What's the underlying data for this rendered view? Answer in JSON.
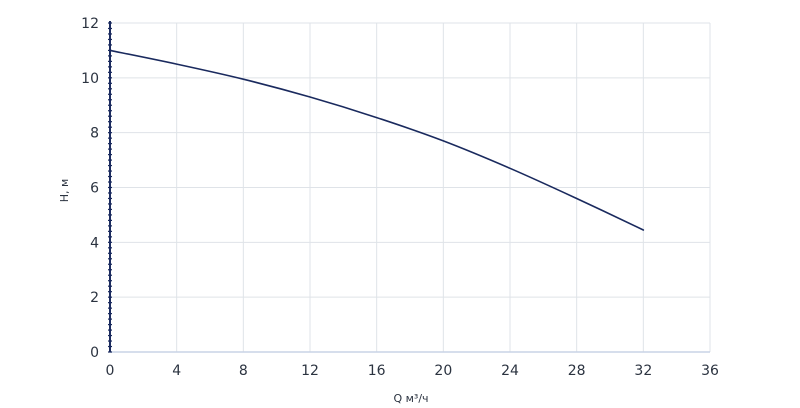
{
  "chart_data": {
    "type": "line",
    "title": "",
    "xlabel": "Q м³/ч",
    "ylabel": "H, м",
    "xlim": [
      0,
      36
    ],
    "ylim": [
      0,
      12
    ],
    "x_ticks": [
      0,
      4,
      8,
      12,
      16,
      20,
      24,
      28,
      32,
      36
    ],
    "y_ticks": [
      0,
      2,
      4,
      6,
      8,
      10,
      12
    ],
    "grid": true,
    "legend": "none",
    "series": [
      {
        "color": "#1a2a5e",
        "x": [
          0,
          4,
          8,
          12,
          16,
          20,
          24,
          28,
          32
        ],
        "y": [
          11.0,
          10.5,
          9.95,
          9.3,
          8.55,
          7.7,
          6.7,
          5.6,
          4.45
        ]
      }
    ],
    "colors": {
      "grid": "#dfe3e8",
      "axis": "#1a2a5e",
      "x_axis_line": "#c9d3e6",
      "text": "#2b3340"
    }
  }
}
